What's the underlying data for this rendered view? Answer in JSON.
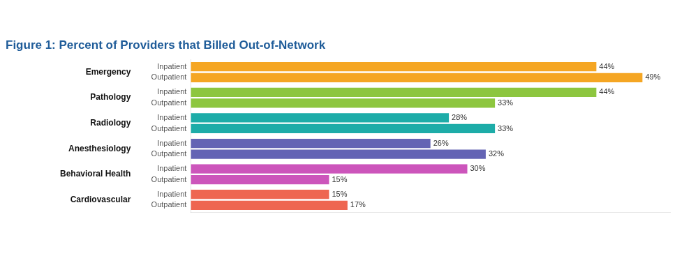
{
  "chart_data": {
    "type": "bar",
    "orientation": "horizontal",
    "title": "Figure 1: Percent of Providers that Billed Out-of-Network",
    "categories": [
      "Emergency",
      "Pathology",
      "Radiology",
      "Anesthesiology",
      "Behavioral Health",
      "Cardiovascular"
    ],
    "colors": [
      "#F5A623",
      "#8DC63F",
      "#1DACA8",
      "#6464B4",
      "#CC55BB",
      "#EE6651"
    ],
    "series": [
      {
        "name": "Inpatient",
        "values": [
          44,
          44,
          28,
          26,
          30,
          15
        ],
        "value_labels": [
          "44%",
          "44%",
          "28%",
          "26%",
          "30%",
          "15%"
        ]
      },
      {
        "name": "Outpatient",
        "values": [
          49,
          33,
          33,
          32,
          15,
          17
        ],
        "value_labels": [
          "49%",
          "33%",
          "33%",
          "32%",
          "15%",
          "17%"
        ]
      }
    ],
    "xlim": [
      0,
      52
    ],
    "grid": false,
    "data_labels": true,
    "tick_labels": "y"
  }
}
